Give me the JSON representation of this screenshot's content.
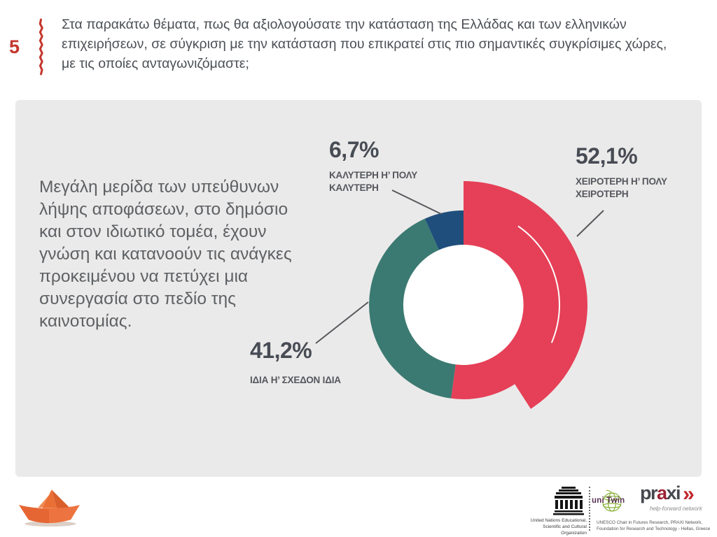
{
  "slide": {
    "question_number": "5",
    "question_text": "Στα παρακάτω θέματα, πως θα αξιολογούσατε την κατάσταση της Ελλάδας και των ελληνικών επιχειρήσεων, σε σύγκριση με την κατάσταση που επικρατεί στις πιο σημαντικές συγκρίσιμες χώρες, με τις οποίες ανταγωνιζόμαστε;",
    "summary_text": "Μεγάλη μερίδα των υπεύθυνων λήψης αποφάσεων, στο δημόσιο και στον ιδιωτικό τομέα, έχουν γνώση και κατανοούν τις ανάγκες προκειμένου να πετύχει μια συνεργασία στο πεδίο της καινοτομίας.",
    "accent_color": "#c4372e",
    "card_color": "#ebeaea"
  },
  "chart_data": {
    "type": "pie",
    "variant": "donut",
    "direction": "clockwise",
    "start_angle_deg": 0,
    "slices": [
      {
        "label": "ΧΕΙΡΟΤΕΡΗ Η’ ΠΟΛΥ ΧΕΙΡΟΤΕΡΗ",
        "value_pct": 52.1,
        "value_label": "52,1%",
        "color": "#e54057",
        "emphasized": true
      },
      {
        "label": "ΙΔΙΑ Η’ ΣΧΕΔΟΝ ΙΔΙΑ",
        "value_pct": 41.2,
        "value_label": "41,2%",
        "color": "#3b7a72",
        "emphasized": false
      },
      {
        "label": "ΚΑΛΥΤΕΡΗ Η’ ΠΟΛΥ ΚΑΛΥΤΕΡΗ",
        "value_pct": 6.7,
        "value_label": "6,7%",
        "color": "#1f4e7c",
        "emphasized": false
      }
    ],
    "hole_color": "#ffffff"
  },
  "footer": {
    "unesco_caption": "United Nations Educational, Scientific and Cultural Organization",
    "unitwin_label": "uni Twin",
    "praxi": {
      "name_pre": "pr",
      "name_accent": "a",
      "name_post": "xi",
      "chevrons": "»",
      "tagline": "help-forward network",
      "red": "#c1272d"
    },
    "credit_line": "UNESCO Chair in Futures Research, PRAXI Network, Foundation for Research and Technology - Hellas, Greece"
  }
}
